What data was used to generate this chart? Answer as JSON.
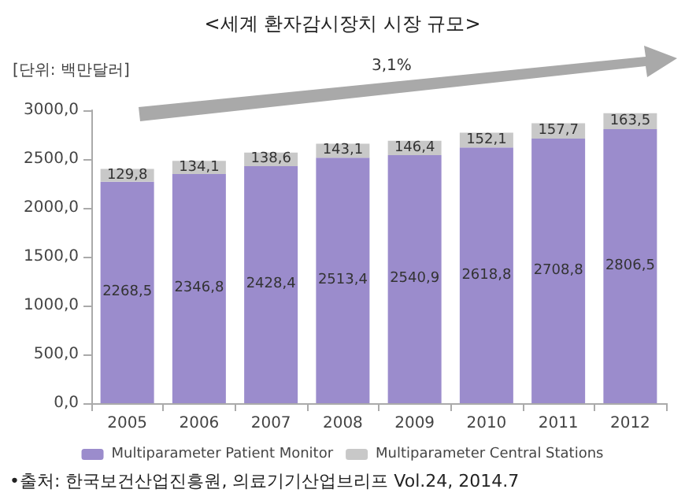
{
  "chart_data": {
    "type": "bar",
    "title": "<세계 환자감시장치 시장 규모>",
    "ylabel": "[단위: 백만달러]",
    "categories": [
      "2005",
      "2006",
      "2007",
      "2008",
      "2009",
      "2010",
      "2011",
      "2012"
    ],
    "stacked": true,
    "series": [
      {
        "name": "Multiparameter Patient Monitor",
        "color": "#9b8ccc",
        "values": [
          2268.5,
          2346.8,
          2428.4,
          2513.4,
          2540.9,
          2618.8,
          2708.8,
          2806.5
        ],
        "value_labels": [
          "2268,5",
          "2346,8",
          "2428,4",
          "2513,4",
          "2540,9",
          "2618,8",
          "2708,8",
          "2806,5"
        ]
      },
      {
        "name": "Multiparameter Central Stations",
        "color": "#c8c8c8",
        "values": [
          129.8,
          134.1,
          138.6,
          143.1,
          146.4,
          152.1,
          157.7,
          163.5
        ],
        "value_labels": [
          "129,8",
          "134,1",
          "138,6",
          "143,1",
          "146,4",
          "152,1",
          "157,7",
          "163,5"
        ]
      }
    ],
    "ylim": [
      0,
      3000
    ],
    "yticks": [
      {
        "value": 0,
        "label": "0,0"
      },
      {
        "value": 500,
        "label": "500,0"
      },
      {
        "value": 1000,
        "label": "1000,0"
      },
      {
        "value": 1500,
        "label": "1500,0"
      },
      {
        "value": 2000,
        "label": "2000,0"
      },
      {
        "value": 2500,
        "label": "2500,0"
      },
      {
        "value": 3000,
        "label": "3000,0"
      }
    ],
    "grid": false,
    "legend": "bottom",
    "annotations": [
      "3,1%",
      "•출처: 한국보건산업진흥원, 의료기기산업브리프 Vol.24, 2014.7"
    ]
  }
}
